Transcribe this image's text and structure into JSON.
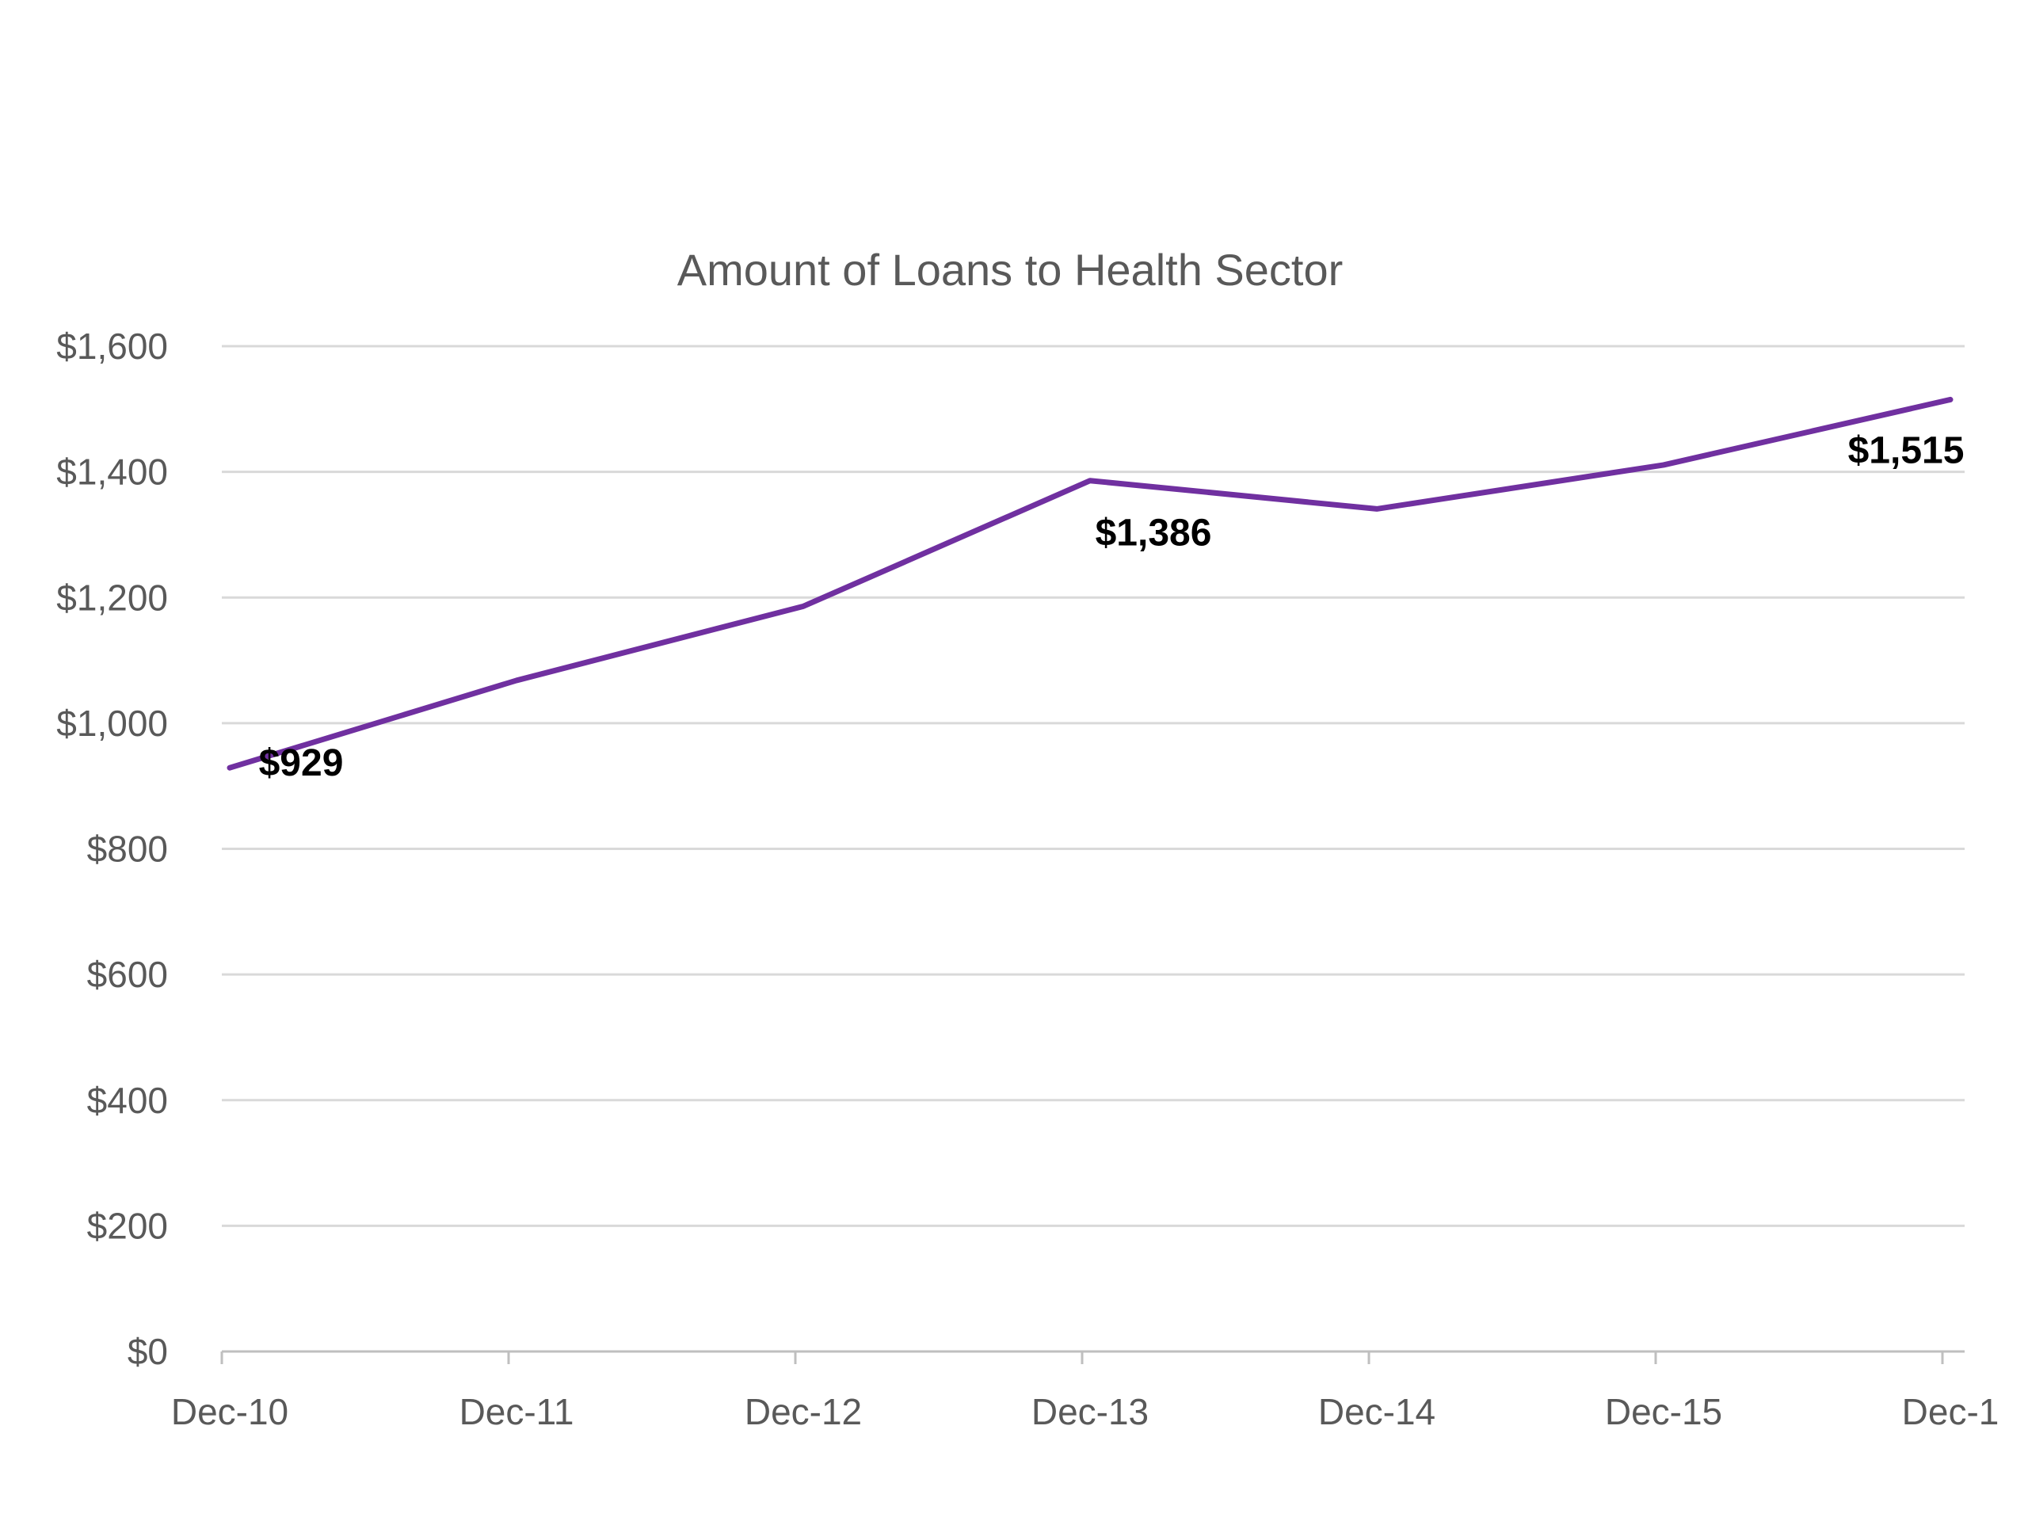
{
  "chart_data": {
    "type": "line",
    "title": "Amount of Loans to Health Sector",
    "xlabel": "",
    "ylabel": "",
    "categories": [
      "Dec-10",
      "Dec-11",
      "Dec-12",
      "Dec-13",
      "Dec-14",
      "Dec-15",
      "Dec-1"
    ],
    "values": [
      929,
      1068,
      1186,
      1386,
      1341,
      1411,
      1515
    ],
    "ylim": [
      0,
      1600
    ],
    "yticks": [
      "$0",
      "$200",
      "$400",
      "$600",
      "$800",
      "$1,000",
      "$1,200",
      "$1,400",
      "$1,600"
    ],
    "data_labels": [
      {
        "index": 0,
        "text": "$929"
      },
      {
        "index": 3,
        "text": "$1,386"
      },
      {
        "index": 6,
        "text": "$1,515"
      }
    ],
    "grid": true,
    "line_color": "#7030a0",
    "grid_color": "#d9d9d9",
    "axis_color": "#bfbfbf"
  }
}
